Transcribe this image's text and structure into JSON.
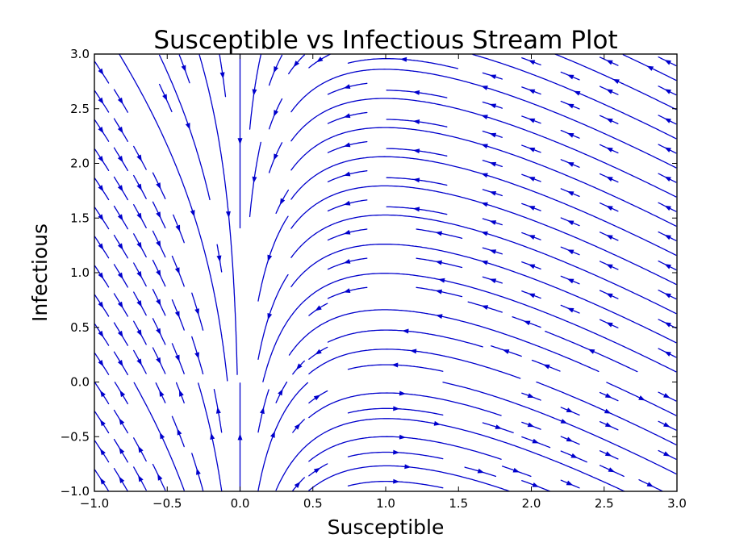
{
  "chart_data": {
    "type": "streamplot",
    "title": "Susceptible vs Infectious Stream Plot",
    "xlabel": "Susceptible",
    "ylabel": "Infectious",
    "xlim": [
      -1.0,
      3.0
    ],
    "ylim": [
      -1.0,
      3.0
    ],
    "x_ticks": [
      -1.0,
      -0.5,
      0.0,
      0.5,
      1.0,
      1.5,
      2.0,
      2.5,
      3.0
    ],
    "y_ticks": [
      -1.0,
      -0.5,
      0.0,
      0.5,
      1.0,
      1.5,
      2.0,
      2.5,
      3.0
    ],
    "x_tick_labels": [
      "−1.0",
      "−0.5",
      "0.0",
      "0.5",
      "1.0",
      "1.5",
      "2.0",
      "2.5",
      "3.0"
    ],
    "y_tick_labels": [
      "−1.0",
      "−0.5",
      "0.0",
      "0.5",
      "1.0",
      "1.5",
      "2.0",
      "2.5",
      "3.0"
    ],
    "grid": false,
    "legend": false,
    "line_color": "#0000cc",
    "vector_field": {
      "dx_dt": "-x*y",
      "dy_dt": "x*y - y"
    }
  }
}
